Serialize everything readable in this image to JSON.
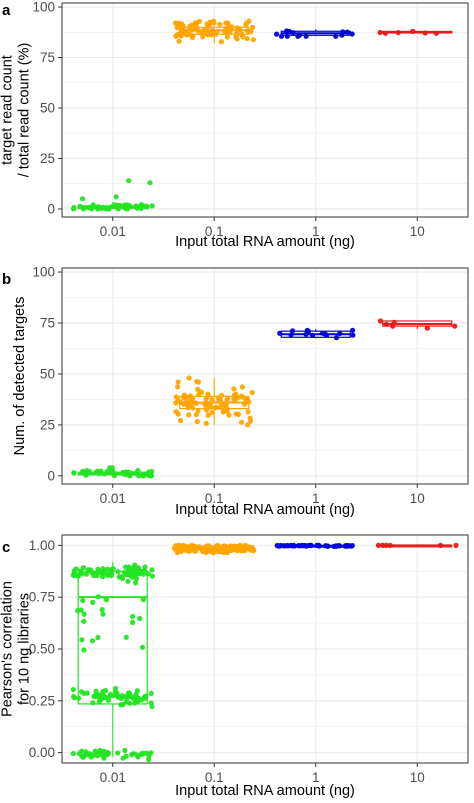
{
  "colors": {
    "0.01": "#22e522",
    "0.1": "#ffa500",
    "1": "#0000e0",
    "10": "#e51a1a",
    "grid": "#ebebeb",
    "panel_border": "#333333"
  },
  "chart_data": [
    {
      "panel_label": "a",
      "type": "boxplot-jitter",
      "categories": [
        "0.01",
        "0.1",
        "1",
        "10"
      ],
      "xlabel": "Input total RNA amount (ng)",
      "ylabel": [
        "target read count",
        "/ total read count (%)"
      ],
      "ylim": [
        -4,
        102
      ],
      "yticks": [
        0,
        25,
        50,
        75,
        100
      ],
      "grid": true,
      "groups": [
        {
          "category": "0.01",
          "n": 48,
          "q1": 0.3,
          "median": 0.8,
          "q3": 1.5,
          "low": 0,
          "high": 3.5,
          "outliers": [
            5,
            6,
            13,
            14
          ]
        },
        {
          "category": "0.1",
          "n": 90,
          "q1": 86.5,
          "median": 88.5,
          "q3": 90,
          "low": 82,
          "high": 93,
          "outliers": []
        },
        {
          "category": "1",
          "n": 14,
          "q1": 86,
          "median": 87,
          "q3": 88,
          "low": 85.5,
          "high": 89,
          "outliers": []
        },
        {
          "category": "10",
          "n": 6,
          "q1": 87.2,
          "median": 87.5,
          "q3": 87.9,
          "low": 87,
          "high": 88.2,
          "outliers": []
        }
      ]
    },
    {
      "panel_label": "b",
      "type": "boxplot-jitter",
      "categories": [
        "0.01",
        "0.1",
        "1",
        "10"
      ],
      "xlabel": "Input total RNA amount (ng)",
      "ylabel": [
        "Num. of detected targets"
      ],
      "ylim": [
        -4,
        102
      ],
      "yticks": [
        0,
        25,
        50,
        75,
        100
      ],
      "grid": true,
      "groups": [
        {
          "category": "0.01",
          "n": 48,
          "q1": 0.5,
          "median": 1,
          "q3": 1.8,
          "low": 0,
          "high": 3,
          "outliers": [
            4,
            4
          ]
        },
        {
          "category": "0.1",
          "n": 90,
          "q1": 33,
          "median": 36,
          "q3": 39,
          "low": 25,
          "high": 48,
          "outliers": []
        },
        {
          "category": "1",
          "n": 14,
          "q1": 68,
          "median": 69.5,
          "q3": 71,
          "low": 67.5,
          "high": 72,
          "outliers": []
        },
        {
          "category": "10",
          "n": 6,
          "q1": 73.5,
          "median": 74.5,
          "q3": 76,
          "low": 72,
          "high": 76,
          "outliers": []
        }
      ]
    },
    {
      "panel_label": "c",
      "type": "boxplot-jitter",
      "categories": [
        "0.01",
        "0.1",
        "1",
        "10"
      ],
      "xlabel": "Input total RNA amount (ng)",
      "ylabel": [
        "Pearson's correlation",
        "for 10 ng libraries"
      ],
      "ylim": [
        -0.05,
        1.05
      ],
      "yticks": [
        0.0,
        0.25,
        0.5,
        0.75,
        1.0
      ],
      "ytick_labels": [
        "0.00",
        "0.25",
        "0.50",
        "0.75",
        "1.00"
      ],
      "grid": true,
      "groups": [
        {
          "category": "0.01",
          "n": 200,
          "q1": 0.235,
          "median": 0.75,
          "q3": 0.875,
          "low": -0.02,
          "high": 0.92,
          "outliers": [],
          "clusters": [
            {
              "center": 0.87,
              "spread": 0.025,
              "n": 80
            },
            {
              "center": 0.27,
              "spread": 0.03,
              "n": 60
            },
            {
              "center": -0.01,
              "spread": 0.015,
              "n": 40
            },
            {
              "center": 0.7,
              "spread": 0.06,
              "n": 14
            },
            {
              "center": 0.5,
              "spread": 0.09,
              "n": 6
            }
          ]
        },
        {
          "category": "0.1",
          "n": 180,
          "q1": 0.978,
          "median": 0.985,
          "q3": 0.99,
          "low": 0.965,
          "high": 1.0,
          "outliers": []
        },
        {
          "category": "1",
          "n": 50,
          "q1": 0.997,
          "median": 0.998,
          "q3": 0.999,
          "low": 0.995,
          "high": 1.0,
          "outliers": []
        },
        {
          "category": "10",
          "n": 6,
          "q1": 1.0,
          "median": 1.0,
          "q3": 1.0,
          "low": 1.0,
          "high": 1.0,
          "outliers": []
        }
      ]
    }
  ]
}
